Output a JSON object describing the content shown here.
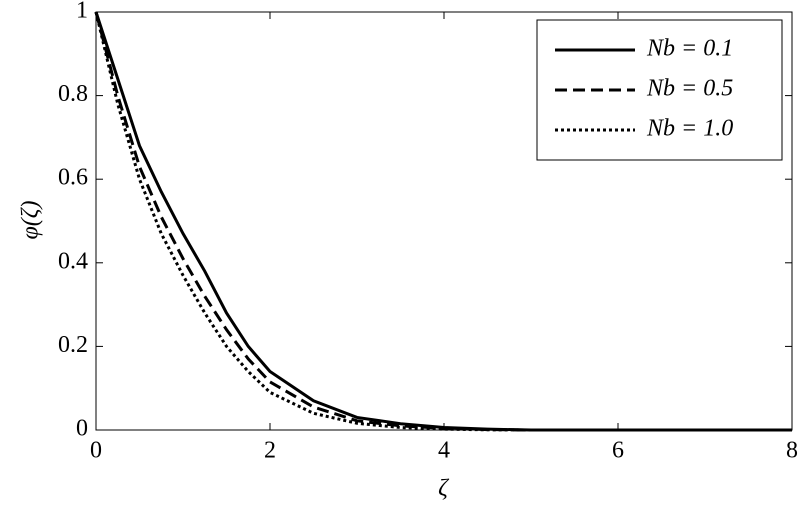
{
  "chart_data": {
    "type": "line",
    "xlabel": "ζ",
    "ylabel": "φ(ζ)",
    "x": [
      0,
      0.25,
      0.5,
      0.75,
      1,
      1.25,
      1.5,
      1.75,
      2,
      2.5,
      3,
      3.5,
      4,
      4.5,
      5,
      6,
      7,
      8
    ],
    "series": [
      {
        "name": "Nb = 0.1",
        "color": "#000000",
        "dash": "solid",
        "values": [
          1,
          0.84,
          0.68,
          0.57,
          0.47,
          0.38,
          0.28,
          0.2,
          0.14,
          0.07,
          0.03,
          0.015,
          0.006,
          0.002,
          0,
          0,
          0,
          0
        ]
      },
      {
        "name": "Nb = 0.5",
        "color": "#000000",
        "dash": "dashed",
        "values": [
          1,
          0.8,
          0.63,
          0.51,
          0.41,
          0.32,
          0.24,
          0.17,
          0.115,
          0.055,
          0.022,
          0.01,
          0.004,
          0.001,
          0,
          0,
          0,
          0
        ]
      },
      {
        "name": "Nb = 1.0",
        "color": "#000000",
        "dash": "dotted",
        "values": [
          1,
          0.78,
          0.6,
          0.47,
          0.37,
          0.28,
          0.2,
          0.14,
          0.09,
          0.04,
          0.016,
          0.006,
          0.002,
          0.0005,
          0,
          0,
          0,
          0
        ]
      }
    ],
    "xlim": [
      0,
      8
    ],
    "ylim": [
      0,
      1
    ],
    "xticks": [
      0,
      2,
      4,
      6,
      8
    ],
    "yticks": [
      0,
      0.2,
      0.4,
      0.6,
      0.8,
      1
    ],
    "grid": false,
    "legend": "upper right"
  }
}
